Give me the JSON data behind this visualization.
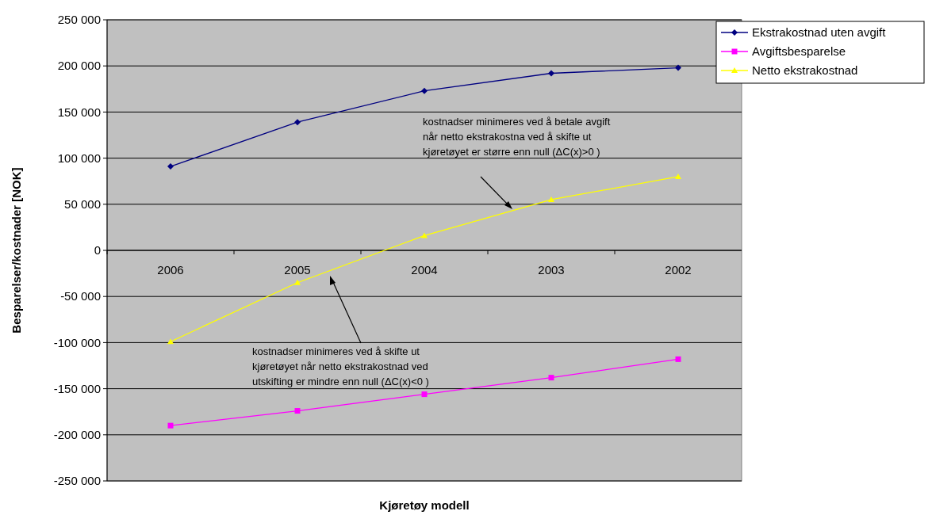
{
  "chart_data": {
    "type": "line",
    "xlabel": "Kjøretøy modell",
    "ylabel": "Besparelser/kostnader [NOK]",
    "categories": [
      "2006",
      "2005",
      "2004",
      "2003",
      "2002"
    ],
    "series": [
      {
        "name": "Ekstrakostnad uten avgift",
        "color": "#000080",
        "marker": "diamond",
        "values": [
          91000,
          139000,
          173000,
          192000,
          198000
        ]
      },
      {
        "name": "Avgiftsbesparelse",
        "color": "#ff00ff",
        "marker": "square",
        "values": [
          -190000,
          -174000,
          -156000,
          -138000,
          -118000
        ]
      },
      {
        "name": "Netto ekstrakostnad",
        "color": "#ffff00",
        "marker": "triangle",
        "values": [
          -99000,
          -35000,
          16000,
          55000,
          80000
        ]
      }
    ],
    "ylim": [
      -250000,
      250000
    ],
    "yticks": [
      {
        "value": -250000,
        "label": "-250 000"
      },
      {
        "value": -200000,
        "label": "-200 000"
      },
      {
        "value": -150000,
        "label": "-150 000"
      },
      {
        "value": -100000,
        "label": "-100 000"
      },
      {
        "value": -50000,
        "label": "-50 000"
      },
      0,
      {
        "value": 50000,
        "label": "50 000"
      },
      {
        "value": 100000,
        "label": "100 000"
      },
      {
        "value": 150000,
        "label": "150 000"
      },
      {
        "value": 200000,
        "label": "200 000"
      },
      {
        "value": 250000,
        "label": "250 000"
      }
    ],
    "grid": "y",
    "legend": "top right",
    "line_style": "solid",
    "annotations": [
      "kostnadser minimeres ved å betale avgift når netto ekstrakostna ved å skifte ut kjøretøyet er større enn null (ΔC(x)>0 )",
      "kostnadser minimeres ved å skifte ut kjøretøyet når netto ekstrakostnad ved utskifting er mindre enn null (ΔC(x)<0 )"
    ]
  }
}
